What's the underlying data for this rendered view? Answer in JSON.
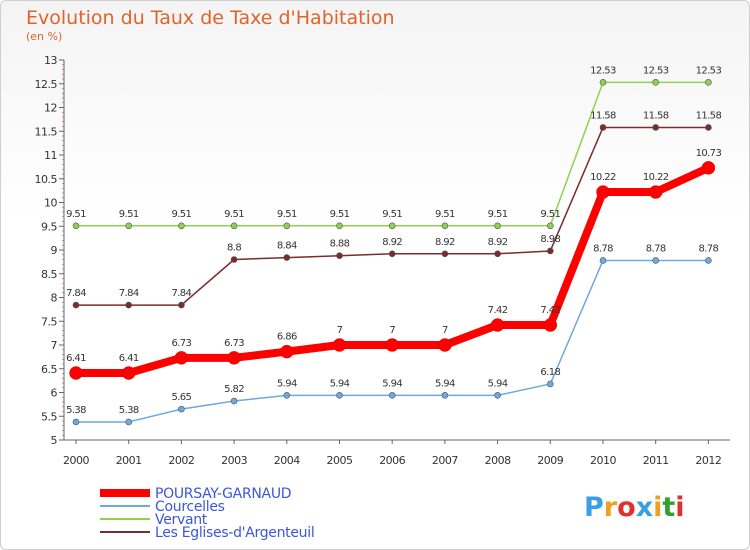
{
  "chart_data": {
    "type": "line",
    "title": "Evolution du Taux de Taxe d'Habitation",
    "subtitle": "(en %)",
    "x": [
      "2000",
      "2001",
      "2002",
      "2003",
      "2004",
      "2005",
      "2006",
      "2007",
      "2008",
      "2009",
      "2010",
      "2011",
      "2012"
    ],
    "ylim": [
      5,
      13
    ],
    "yticks": [
      "5",
      "5.5",
      "6",
      "6.5",
      "7",
      "7.5",
      "8",
      "8.5",
      "9",
      "9.5",
      "10",
      "10.5",
      "11",
      "11.5",
      "12",
      "12.5",
      "13"
    ],
    "grid": false,
    "legend_position": "bottom-left",
    "series": [
      {
        "name": "POURSAY-GARNAUD",
        "color": "#ff0000",
        "values": [
          6.41,
          6.41,
          6.73,
          6.73,
          6.86,
          7,
          7,
          7,
          7.42,
          7.42,
          10.22,
          10.22,
          10.73
        ],
        "labels": [
          "6.41",
          "6.41",
          "6.73",
          "6.73",
          "6.86",
          "7",
          "7",
          "7",
          "7.42",
          "7.42",
          "10.22",
          "10.22",
          "10.73"
        ]
      },
      {
        "name": "Courcelles",
        "color": "#6fa8dc",
        "values": [
          5.38,
          5.38,
          5.65,
          5.82,
          5.94,
          5.94,
          5.94,
          5.94,
          5.94,
          6.18,
          8.78,
          8.78,
          8.78
        ],
        "labels": [
          "5.38",
          "5.38",
          "5.65",
          "5.82",
          "5.94",
          "5.94",
          "5.94",
          "5.94",
          "5.94",
          "6.18",
          "8.78",
          "8.78",
          "8.78"
        ]
      },
      {
        "name": "Vervant",
        "color": "#8fd14f",
        "values": [
          9.51,
          9.51,
          9.51,
          9.51,
          9.51,
          9.51,
          9.51,
          9.51,
          9.51,
          9.51,
          12.53,
          12.53,
          12.53
        ],
        "labels": [
          "9.51",
          "9.51",
          "9.51",
          "9.51",
          "9.51",
          "9.51",
          "9.51",
          "9.51",
          "9.51",
          "9.51",
          "12.53",
          "12.53",
          "12.53"
        ]
      },
      {
        "name": "Les Eglises-d'Argenteuil",
        "color": "#7b2c2c",
        "values": [
          7.84,
          7.84,
          7.84,
          8.8,
          8.84,
          8.88,
          8.92,
          8.92,
          8.92,
          8.98,
          11.58,
          11.58,
          11.58
        ],
        "labels": [
          "7.84",
          "7.84",
          "7.84",
          "8.8",
          "8.84",
          "8.88",
          "8.92",
          "8.92",
          "8.92",
          "8.98",
          "11.58",
          "11.58",
          "11.58"
        ]
      }
    ]
  },
  "logo": {
    "text": "Proxiti",
    "colors": [
      "#3aa0e0",
      "#f0a020",
      "#e03030",
      "#3aa0e0",
      "#f0a020",
      "#30a030",
      "#e03030"
    ]
  }
}
